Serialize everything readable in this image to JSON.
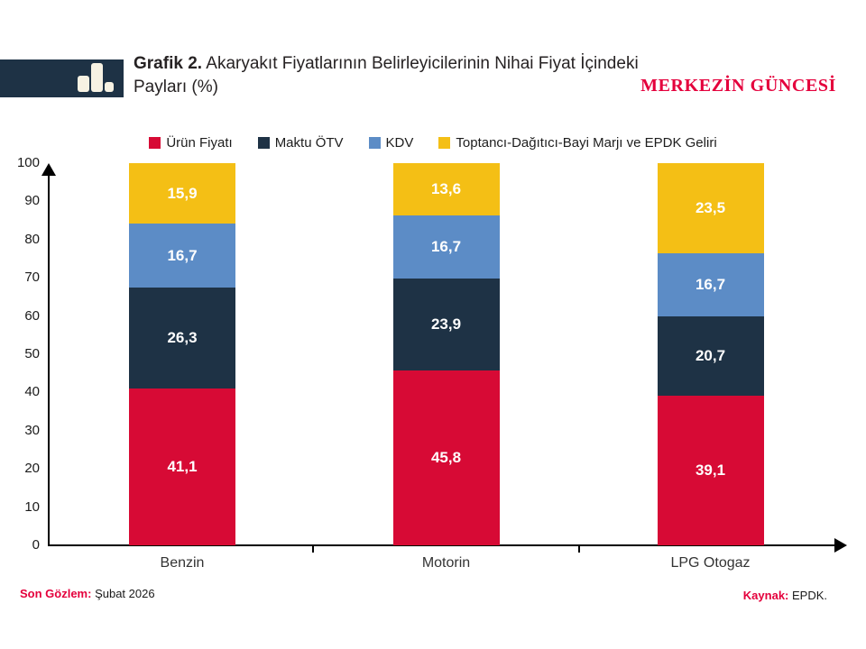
{
  "header": {
    "title_prefix": "Grafik 2.",
    "title_rest": " Akaryakıt Fiyatlarının Belirleyicilerinin Nihai Fiyat İçindeki Payları (%)",
    "brand": "MERKEZİN GÜNCESİ"
  },
  "colors": {
    "brand_red": "#E4003C",
    "logo_bg": "#1E3245",
    "logo_bars": "#F7F2E3",
    "axis": "#000000"
  },
  "chart_data": {
    "type": "bar",
    "stacked": true,
    "title": "Akaryakıt Fiyatlarının Belirleyicilerinin Nihai Fiyat İçindeki Payları (%)",
    "categories": [
      "Benzin",
      "Motorin",
      "LPG Otogaz"
    ],
    "series": [
      {
        "name": "Ürün Fiyatı",
        "color": "#D70A35",
        "values": [
          41.1,
          45.8,
          39.1
        ]
      },
      {
        "name": "Maktu ÖTV",
        "color": "#1E3245",
        "values": [
          26.3,
          23.9,
          20.7
        ]
      },
      {
        "name": "KDV",
        "color": "#5C8CC6",
        "values": [
          16.7,
          16.7,
          16.7
        ]
      },
      {
        "name": "Toptancı-Dağıtıcı-Bayi Marjı ve EPDK Geliri",
        "color": "#F4BF15",
        "values": [
          15.9,
          13.6,
          23.5
        ]
      }
    ],
    "ylim": [
      0,
      100
    ],
    "yticks": [
      0,
      10,
      20,
      30,
      40,
      50,
      60,
      70,
      80,
      90,
      100
    ],
    "grid": false,
    "legend_position": "top",
    "value_label_format": "comma-decimal"
  },
  "footer": {
    "left_label": "Son Gözlem:",
    "left_value": " Şubat 2026",
    "right_label": "Kaynak:",
    "right_value": " EPDK."
  }
}
